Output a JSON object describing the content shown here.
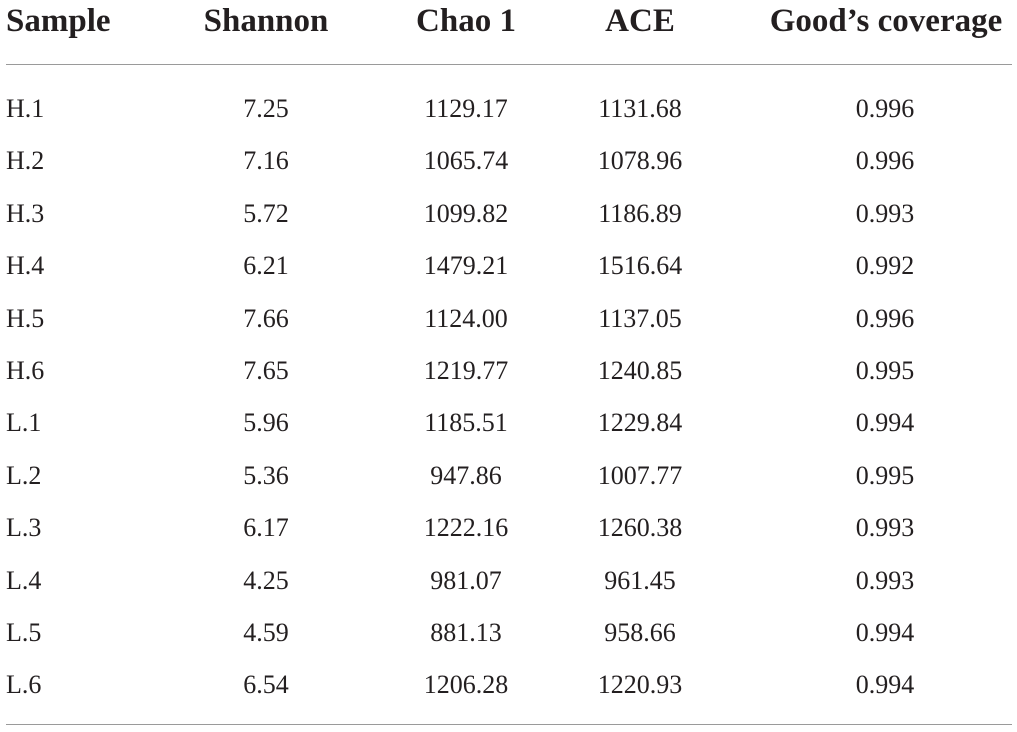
{
  "table": {
    "headers": {
      "sample": "Sample",
      "shannon": "Shannon",
      "chao": "Chao 1",
      "ace": "ACE",
      "good": "Good’s coverage"
    },
    "rows": [
      {
        "sample": "H.1",
        "shannon": "7.25",
        "chao": "1129.17",
        "ace": "1131.68",
        "good": "0.996"
      },
      {
        "sample": "H.2",
        "shannon": "7.16",
        "chao": "1065.74",
        "ace": "1078.96",
        "good": "0.996"
      },
      {
        "sample": "H.3",
        "shannon": "5.72",
        "chao": "1099.82",
        "ace": "1186.89",
        "good": "0.993"
      },
      {
        "sample": "H.4",
        "shannon": "6.21",
        "chao": "1479.21",
        "ace": "1516.64",
        "good": "0.992"
      },
      {
        "sample": "H.5",
        "shannon": "7.66",
        "chao": "1124.00",
        "ace": "1137.05",
        "good": "0.996"
      },
      {
        "sample": "H.6",
        "shannon": "7.65",
        "chao": "1219.77",
        "ace": "1240.85",
        "good": "0.995"
      },
      {
        "sample": "L.1",
        "shannon": "5.96",
        "chao": "1185.51",
        "ace": "1229.84",
        "good": "0.994"
      },
      {
        "sample": "L.2",
        "shannon": "5.36",
        "chao": "947.86",
        "ace": "1007.77",
        "good": "0.995"
      },
      {
        "sample": "L.3",
        "shannon": "6.17",
        "chao": "1222.16",
        "ace": "1260.38",
        "good": "0.993"
      },
      {
        "sample": "L.4",
        "shannon": "4.25",
        "chao": "981.07",
        "ace": "961.45",
        "good": "0.993"
      },
      {
        "sample": "L.5",
        "shannon": "4.59",
        "chao": "881.13",
        "ace": "958.66",
        "good": "0.994"
      },
      {
        "sample": "L.6",
        "shannon": "6.54",
        "chao": "1206.28",
        "ace": "1220.93",
        "good": "0.994"
      }
    ]
  }
}
